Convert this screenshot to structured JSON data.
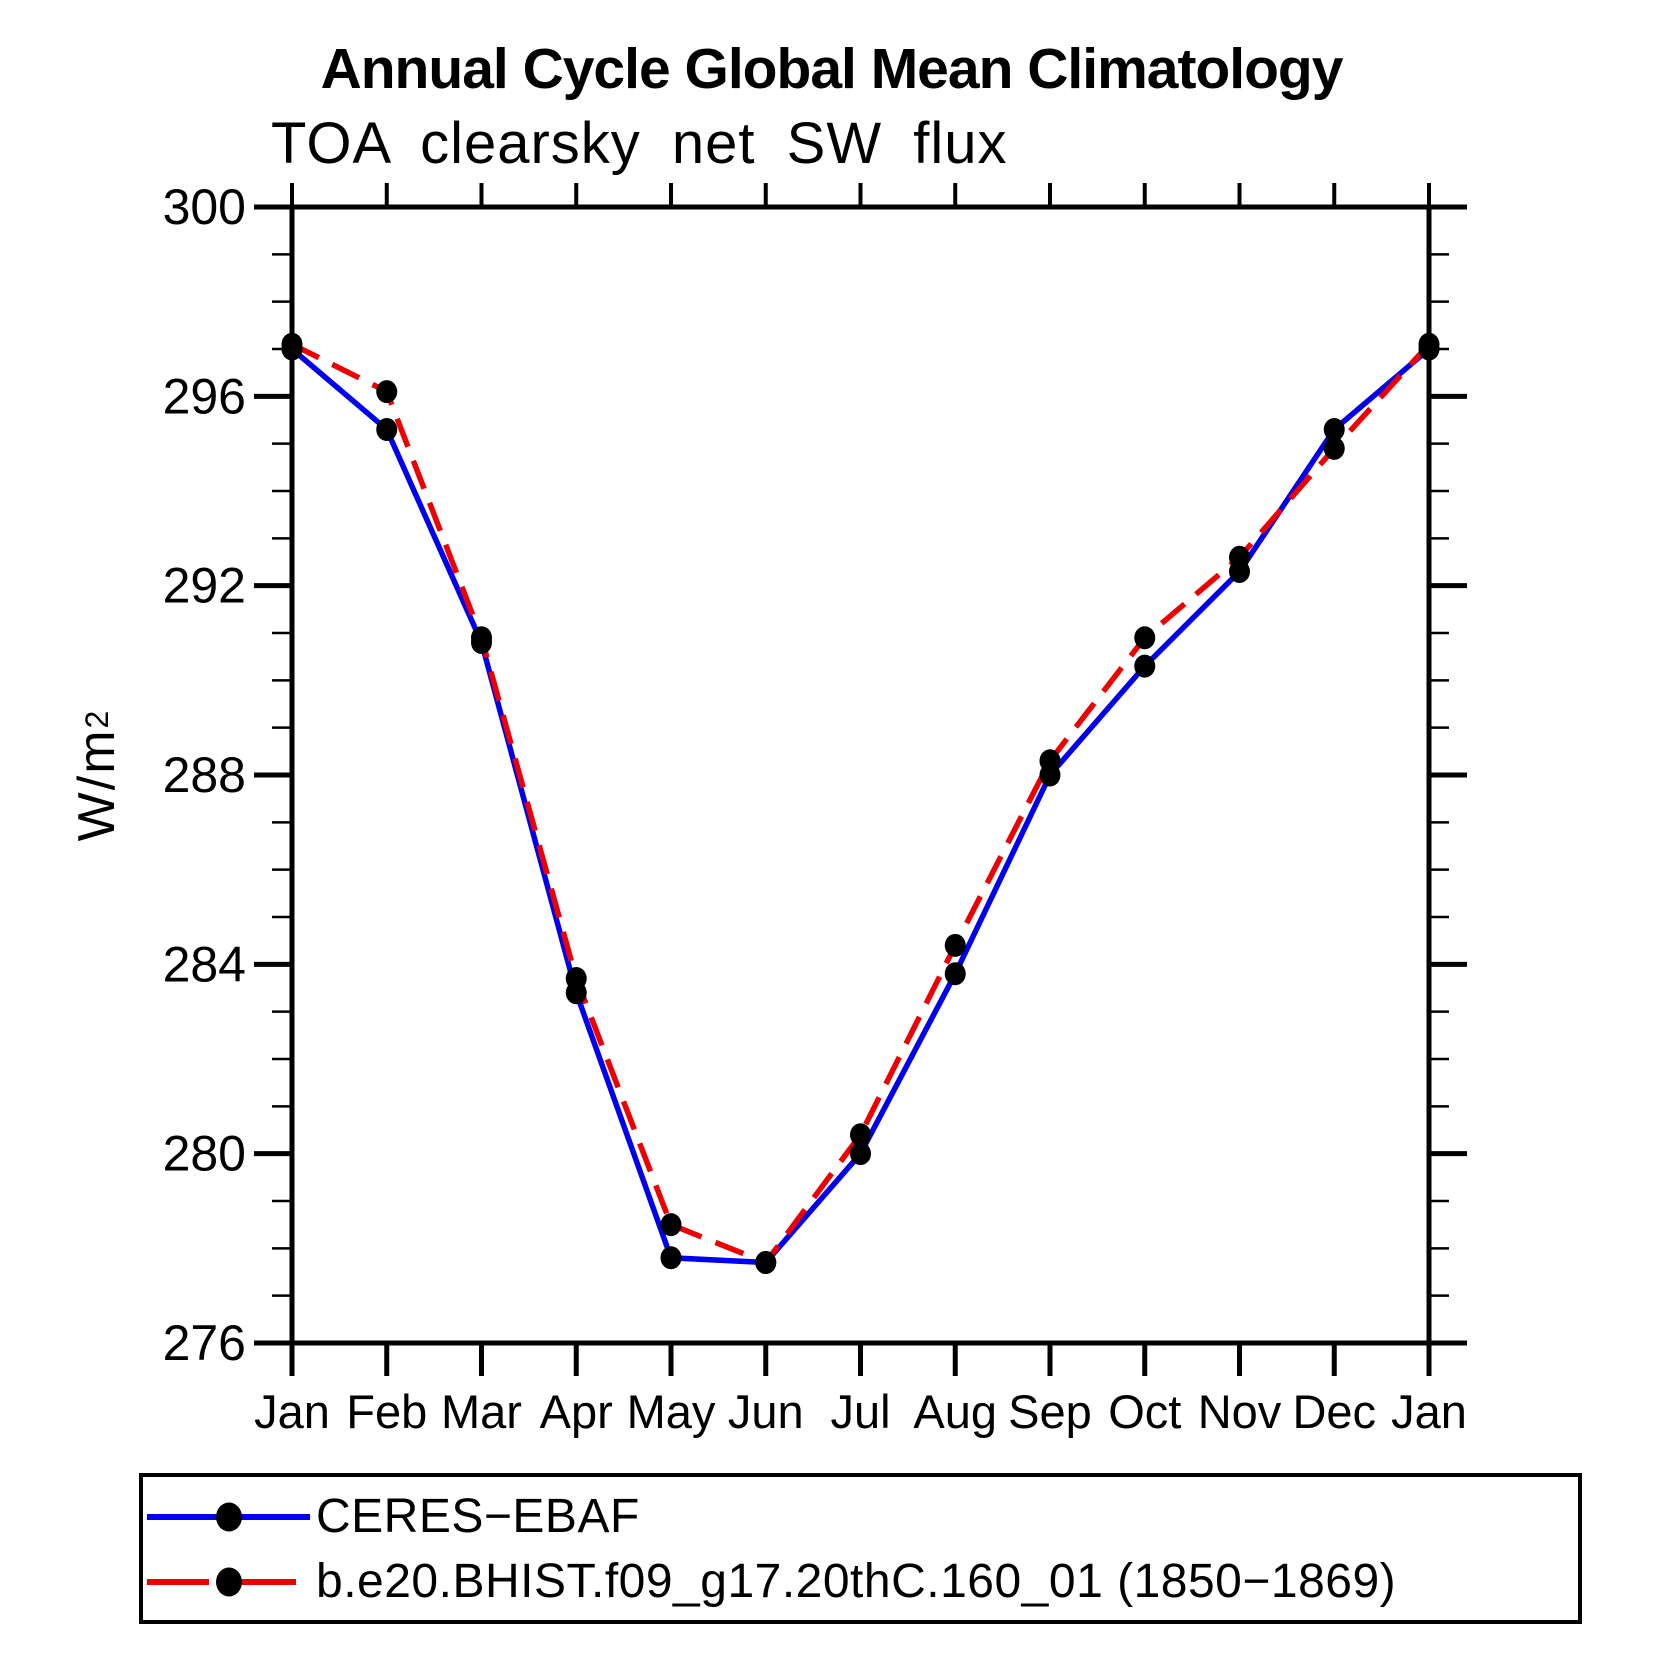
{
  "header": {
    "title": "Annual Cycle Global Mean Climatology",
    "subtitle": "TOA clearsky net SW flux"
  },
  "y_axis": {
    "title_base": "W/m",
    "title_exponent": "2"
  },
  "chart_data": {
    "type": "line",
    "title": "Annual Cycle Global Mean Climatology",
    "subtitle": "TOA clearsky net SW flux",
    "ylabel": "W/m2",
    "ylim": [
      276,
      300
    ],
    "y_ticks": [
      276,
      280,
      284,
      288,
      292,
      296,
      300
    ],
    "y_minor_step": 1,
    "x_tick_labels": [
      "Jan",
      "Feb",
      "Mar",
      "Apr",
      "May",
      "Jun",
      "Jul",
      "Aug",
      "Sep",
      "Oct",
      "Nov",
      "Dec",
      "Jan"
    ],
    "grid": false,
    "legend_position": "bottom-box",
    "background": "#ffffff",
    "axis_color": "#000000",
    "marker_color": "#000000",
    "series": [
      {
        "name": "CERES−EBAF",
        "color": "#0000ee",
        "style": "solid",
        "marker": "black-dot",
        "values": [
          297.0,
          295.3,
          290.8,
          283.4,
          277.8,
          277.7,
          280.0,
          283.8,
          288.0,
          290.3,
          292.3,
          295.3,
          297.0
        ]
      },
      {
        "name": "b.e20.BHIST.f09_g17.20thC.160_01 (1850−1869)",
        "color": "#ee0000",
        "style": "dashed",
        "marker": "black-dot",
        "values": [
          297.1,
          296.1,
          290.9,
          283.7,
          278.5,
          277.7,
          280.4,
          284.4,
          288.3,
          290.9,
          292.6,
          294.9,
          297.1
        ]
      }
    ]
  }
}
